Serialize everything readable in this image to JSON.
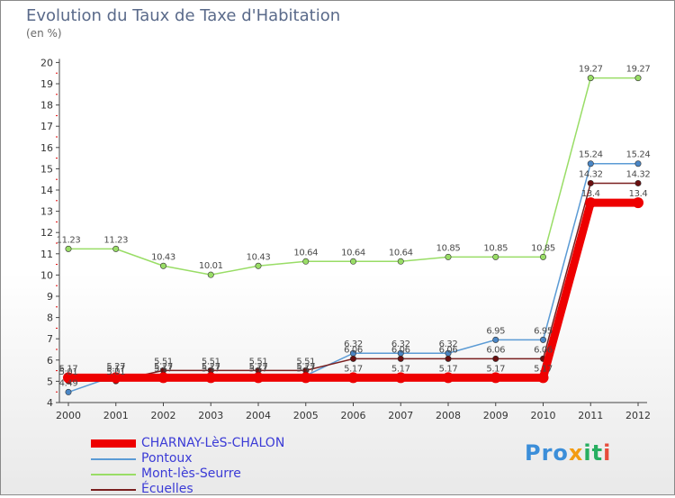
{
  "header": {
    "title": "Evolution du Taux de Taxe d'Habitation",
    "unit": "(en %)"
  },
  "logo": {
    "text": "Proxiti",
    "parts": [
      "Pro",
      "x",
      "it",
      "i"
    ]
  },
  "chart_data": {
    "type": "line",
    "title": "Evolution du Taux de Taxe d'Habitation",
    "ylabel": "(en %)",
    "xlabel": "",
    "ylim": [
      4,
      20
    ],
    "yticks": [
      "4",
      "5",
      "6",
      "7",
      "8",
      "9",
      "10",
      "11",
      "12",
      "13",
      "14",
      "15",
      "16",
      "17",
      "18",
      "19",
      "20"
    ],
    "categories": [
      "2000",
      "2001",
      "2002",
      "2003",
      "2004",
      "2005",
      "2006",
      "2007",
      "2008",
      "2009",
      "2010",
      "2011",
      "2012"
    ],
    "legend_position": "bottom-left",
    "grid": false,
    "series": [
      {
        "name": "CHARNAY-LèS-CHALON",
        "color": "#ee0000",
        "width": 9,
        "values": [
          5.17,
          5.17,
          5.17,
          5.17,
          5.17,
          5.17,
          5.17,
          5.17,
          5.17,
          5.17,
          5.17,
          13.4,
          13.4
        ],
        "labels": [
          "5.17",
          "5.17",
          "5.17",
          "5.17",
          "5.17",
          "5.17",
          "5.17",
          "5.17",
          "5.17",
          "5.17",
          "5.17",
          "13.4",
          "13.4"
        ]
      },
      {
        "name": "Pontoux",
        "color": "#5b9bd5",
        "width": 1.5,
        "values": [
          4.49,
          5.27,
          5.27,
          5.27,
          5.27,
          5.27,
          6.32,
          6.32,
          6.32,
          6.95,
          6.95,
          15.24,
          15.24
        ],
        "labels": [
          "4.49",
          "5.27",
          "5.27",
          "5.27",
          "5.27",
          "5.27",
          "6.32",
          "6.32",
          "6.32",
          "6.95",
          "6.95",
          "15.24",
          "15.24"
        ]
      },
      {
        "name": "Mont-lès-Seurre",
        "color": "#99dd66",
        "width": 1.5,
        "values": [
          11.23,
          11.23,
          10.43,
          10.01,
          10.43,
          10.64,
          10.64,
          10.64,
          10.85,
          10.85,
          10.85,
          19.27,
          19.27
        ],
        "labels": [
          "11.23",
          "11.23",
          "10.43",
          "10.01",
          "10.43",
          "10.64",
          "10.64",
          "10.64",
          "10.85",
          "10.85",
          "10.85",
          "19.27",
          "19.27"
        ]
      },
      {
        "name": "Écuelles",
        "color": "#7a1f1f",
        "width": 1.5,
        "values": [
          5.01,
          5.01,
          5.51,
          5.51,
          5.51,
          5.51,
          6.06,
          6.06,
          6.06,
          6.06,
          6.06,
          14.32,
          14.32
        ],
        "labels": [
          "5.01",
          "5.01",
          "5.51",
          "5.51",
          "5.51",
          "5.51",
          "6.06",
          "6.06",
          "6.06",
          "6.06",
          "6.06",
          "14.32",
          "14.32"
        ]
      }
    ]
  }
}
